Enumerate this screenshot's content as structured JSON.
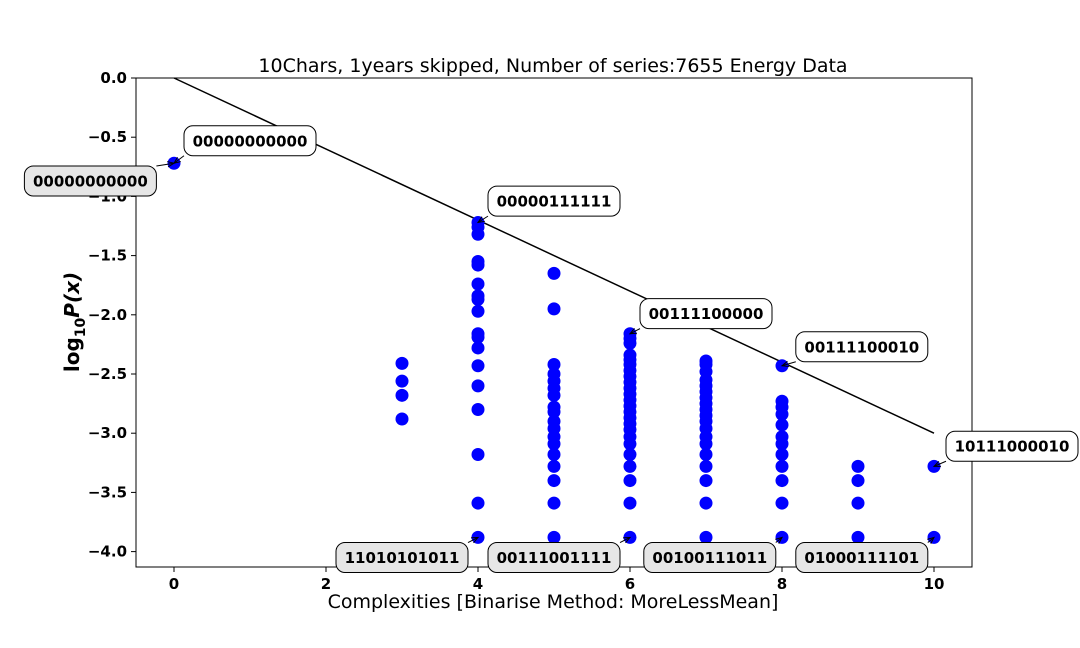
{
  "chart_data": {
    "type": "scatter",
    "title": "10Chars, 1years skipped, Number of series:7655 Energy Data",
    "xlabel": "Complexities [Binarise Method: MoreLessMean]",
    "ylabel_base": "log",
    "ylabel_sub": "10",
    "ylabel_rest": "P(x)",
    "xlim": [
      -0.5,
      10.5
    ],
    "ylim": [
      -4.13,
      0.0
    ],
    "xticks": [
      0,
      2,
      4,
      6,
      8,
      10
    ],
    "yticks": [
      0.0,
      -0.5,
      -1.0,
      -1.5,
      -2.0,
      -2.5,
      -3.0,
      -3.5,
      -4.0
    ],
    "xtick_labels": [
      "0",
      "2",
      "4",
      "6",
      "8",
      "10"
    ],
    "ytick_labels": [
      "0.0",
      "−0.5",
      "−1.0",
      "−1.5",
      "−2.0",
      "−2.5",
      "−3.0",
      "−3.5",
      "−4.0"
    ],
    "marker_color": "#0000ff",
    "line_color": "#000000",
    "trend_line": {
      "x": [
        0,
        10
      ],
      "y": [
        0.0,
        -3.0
      ]
    },
    "points": [
      {
        "x": 0,
        "y": [
          -0.72
        ]
      },
      {
        "x": 3,
        "y": [
          -2.41,
          -2.56,
          -2.68,
          -2.88
        ]
      },
      {
        "x": 4,
        "y": [
          -1.22,
          -1.26,
          -1.32,
          -1.55,
          -1.58,
          -1.74,
          -1.84,
          -1.87,
          -1.97,
          -2.16,
          -2.19,
          -2.28,
          -2.43,
          -2.6,
          -2.8,
          -3.18,
          -3.59,
          -3.88
        ]
      },
      {
        "x": 5,
        "y": [
          -1.65,
          -1.95,
          -2.42,
          -2.5,
          -2.56,
          -2.62,
          -2.68,
          -2.78,
          -2.82,
          -2.9,
          -2.96,
          -3.03,
          -3.09,
          -3.18,
          -3.28,
          -3.4,
          -3.59,
          -3.88
        ]
      },
      {
        "x": 6,
        "y": [
          -2.16,
          -2.2,
          -2.24,
          -2.34,
          -2.38,
          -2.42,
          -2.47,
          -2.52,
          -2.57,
          -2.62,
          -2.67,
          -2.72,
          -2.77,
          -2.82,
          -2.87,
          -2.92,
          -2.97,
          -3.03,
          -3.09,
          -3.18,
          -3.28,
          -3.4,
          -3.59,
          -3.88
        ]
      },
      {
        "x": 7,
        "y": [
          -2.39,
          -2.42,
          -2.48,
          -2.55,
          -2.6,
          -2.65,
          -2.7,
          -2.75,
          -2.8,
          -2.85,
          -2.9,
          -2.96,
          -3.03,
          -3.09,
          -3.18,
          -3.28,
          -3.4,
          -3.59,
          -3.88
        ]
      },
      {
        "x": 8,
        "y": [
          -2.43,
          -2.73,
          -2.78,
          -2.84,
          -2.93,
          -3.03,
          -3.09,
          -3.18,
          -3.28,
          -3.4,
          -3.59,
          -3.88
        ]
      },
      {
        "x": 9,
        "y": [
          -3.28,
          -3.4,
          -3.59,
          -3.88
        ]
      },
      {
        "x": 10,
        "y": [
          -3.28,
          -3.88
        ]
      }
    ],
    "annotations": [
      {
        "text": "00000000000",
        "x": 0,
        "y": -0.72,
        "style": "white",
        "label_x": 1.0,
        "label_y": -0.53,
        "anchor": "middle"
      },
      {
        "text": "00000000000",
        "x": 0,
        "y": -0.72,
        "style": "gray",
        "label_x": -1.1,
        "label_y": -0.87,
        "anchor": "middle"
      },
      {
        "text": "00000111111",
        "x": 4,
        "y": -1.22,
        "style": "white",
        "label_x": 5.0,
        "label_y": -1.04,
        "anchor": "middle"
      },
      {
        "text": "00111100000",
        "x": 6,
        "y": -2.16,
        "style": "white",
        "label_x": 7.0,
        "label_y": -1.99,
        "anchor": "middle"
      },
      {
        "text": "00111100010",
        "x": 8,
        "y": -2.43,
        "style": "white",
        "label_x": 9.05,
        "label_y": -2.27,
        "anchor": "middle"
      },
      {
        "text": "10111000010",
        "x": 10,
        "y": -3.28,
        "style": "white",
        "label_x": 11.05,
        "label_y": -3.11,
        "anchor": "middle"
      },
      {
        "text": "11010101011",
        "x": 4,
        "y": -3.88,
        "style": "gray",
        "label_x": 3.0,
        "label_y": -4.05,
        "anchor": "middle"
      },
      {
        "text": "00111001111",
        "x": 6,
        "y": -3.88,
        "style": "gray",
        "label_x": 5.0,
        "label_y": -4.05,
        "anchor": "middle"
      },
      {
        "text": "00100111011",
        "x": 8,
        "y": -3.88,
        "style": "gray",
        "label_x": 7.05,
        "label_y": -4.05,
        "anchor": "middle"
      },
      {
        "text": "01000111101",
        "x": 10,
        "y": -3.88,
        "style": "gray",
        "label_x": 9.05,
        "label_y": -4.05,
        "anchor": "middle"
      }
    ]
  }
}
